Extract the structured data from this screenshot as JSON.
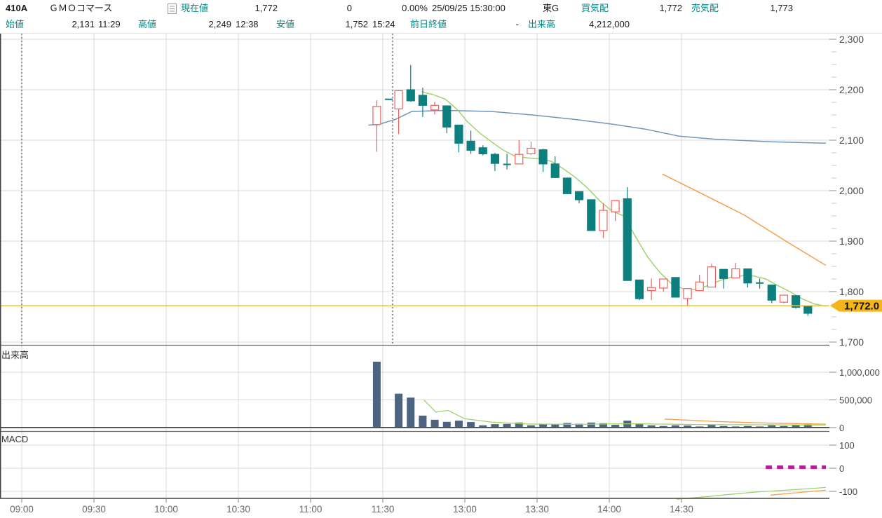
{
  "header": {
    "symbol_code": "410A",
    "symbol_name": "ＧＭＯコマース",
    "current_label": "現在値",
    "current_value": "1,772",
    "change_value": "0",
    "change_pct": "0.00%",
    "datetime": "25/09/25 15:30:00",
    "market": "東G",
    "bid_label": "買気配",
    "bid_value": "1,772",
    "ask_label": "売気配",
    "ask_value": "1,773",
    "open_label": "始値",
    "open_value": "2,131",
    "open_time": "11:29",
    "high_label": "高値",
    "high_value": "2,249",
    "high_time": "12:38",
    "low_label": "安値",
    "low_value": "1,752",
    "low_time": "15:24",
    "prev_close_label": "前日終値",
    "prev_close_value": "-",
    "volume_label": "出来高",
    "volume_value": "4,212,000"
  },
  "colors": {
    "up": "#f0615e",
    "down": "#0d7f7f",
    "ma_short": "#9fd36d",
    "ma_mid": "#7295bb",
    "ma_long": "#f59f4b",
    "volume_bar": "#4d6480",
    "price_line": "#e9c43c",
    "price_badge": "#f5b518",
    "macd_dashed": "#b01da0",
    "grid": "#d9d9d9",
    "axis_dark": "#555555",
    "axis_text": "#4a4a4a",
    "x_text": "#666666"
  },
  "chart_data": {
    "type": "candlestick",
    "interval": "5min",
    "x_axis": {
      "ticks": [
        "09:00",
        "09:30",
        "10:00",
        "10:30",
        "11:00",
        "11:30",
        "13:00",
        "13:30",
        "14:00",
        "14:30"
      ],
      "session_start_lines": [
        "09:00",
        "12:30"
      ]
    },
    "price_axis": {
      "min": 1700,
      "max": 2300,
      "step": 100,
      "minor_step": 25
    },
    "price_line": {
      "value": 1772,
      "label": "1,772.0"
    },
    "pane_labels": {
      "volume": "出来高",
      "macd": "MACD"
    },
    "volume_axis": [
      {
        "v": 1000000,
        "label": "1,000,000"
      },
      {
        "v": 500000,
        "label": "500,000"
      },
      {
        "v": 0,
        "label": "0"
      }
    ],
    "macd_axis": [
      {
        "v": 100,
        "label": "100"
      },
      {
        "v": 0,
        "label": "0"
      },
      {
        "v": -100,
        "label": "-100"
      }
    ],
    "candles": [
      [
        "11:25",
        2131,
        2179,
        2077,
        2167
      ],
      [
        "11:30",
        2181,
        2181,
        2181,
        2181
      ],
      [
        "12:30",
        2162,
        2199,
        2112,
        2198
      ],
      [
        "12:35",
        2200,
        2249,
        2176,
        2178
      ],
      [
        "12:40",
        2189,
        2204,
        2146,
        2169
      ],
      [
        "12:45",
        2160,
        2176,
        2151,
        2169
      ],
      [
        "12:50",
        2168,
        2168,
        2114,
        2126
      ],
      [
        "12:55",
        2130,
        2130,
        2076,
        2094
      ],
      [
        "13:00",
        2098,
        2119,
        2073,
        2080
      ],
      [
        "13:05",
        2085,
        2090,
        2070,
        2073
      ],
      [
        "13:10",
        2072,
        2075,
        2039,
        2054
      ],
      [
        "13:15",
        2052,
        2073,
        2042,
        2052
      ],
      [
        "13:20",
        2053,
        2100,
        2053,
        2072
      ],
      [
        "13:25",
        2073,
        2097,
        2071,
        2084
      ],
      [
        "13:30",
        2081,
        2083,
        2037,
        2053
      ],
      [
        "13:35",
        2053,
        2068,
        2025,
        2026
      ],
      [
        "13:40",
        2025,
        2025,
        1994,
        1994
      ],
      [
        "13:45",
        1998,
        1998,
        1975,
        1982
      ],
      [
        "13:50",
        1982,
        1982,
        1921,
        1921
      ],
      [
        "13:55",
        1921,
        1975,
        1906,
        1961
      ],
      [
        "14:00",
        1958,
        1980,
        1940,
        1980
      ],
      [
        "14:05",
        1984,
        2007,
        1822,
        1822
      ],
      [
        "14:10",
        1823,
        1823,
        1783,
        1786
      ],
      [
        "14:15",
        1802,
        1826,
        1783,
        1808
      ],
      [
        "14:20",
        1807,
        1825,
        1800,
        1825
      ],
      [
        "14:25",
        1828,
        1828,
        1789,
        1789
      ],
      [
        "14:30",
        1786,
        1806,
        1772,
        1806
      ],
      [
        "14:35",
        1802,
        1833,
        1802,
        1819
      ],
      [
        "14:40",
        1809,
        1855,
        1809,
        1849
      ],
      [
        "14:45",
        1844,
        1844,
        1806,
        1826
      ],
      [
        "14:50",
        1827,
        1857,
        1827,
        1845
      ],
      [
        "14:55",
        1845,
        1845,
        1808,
        1817
      ],
      [
        "15:00",
        1817,
        1826,
        1806,
        1817
      ],
      [
        "15:05",
        1813,
        1813,
        1777,
        1783
      ],
      [
        "15:10",
        1779,
        1793,
        1777,
        1793
      ],
      [
        "15:15",
        1792,
        1792,
        1766,
        1769
      ],
      [
        "15:20",
        1771,
        1771,
        1752,
        1757
      ]
    ],
    "volume_bars": [
      [
        "11:25",
        1190000
      ],
      [
        "11:30",
        0
      ],
      [
        "12:30",
        612000
      ],
      [
        "12:35",
        541000
      ],
      [
        "12:40",
        216000
      ],
      [
        "12:45",
        141000
      ],
      [
        "12:50",
        104000
      ],
      [
        "12:55",
        125000
      ],
      [
        "13:00",
        100000
      ],
      [
        "13:05",
        41000
      ],
      [
        "13:10",
        62000
      ],
      [
        "13:15",
        66000
      ],
      [
        "13:20",
        91000
      ],
      [
        "13:25",
        41000
      ],
      [
        "13:30",
        58000
      ],
      [
        "13:35",
        58000
      ],
      [
        "13:40",
        83000
      ],
      [
        "13:45",
        70000
      ],
      [
        "13:50",
        91000
      ],
      [
        "13:55",
        79000
      ],
      [
        "14:00",
        50000
      ],
      [
        "14:05",
        125000
      ],
      [
        "14:10",
        70000
      ],
      [
        "14:15",
        41000
      ],
      [
        "14:20",
        29000
      ],
      [
        "14:25",
        41000
      ],
      [
        "14:30",
        37000
      ],
      [
        "14:35",
        20000
      ],
      [
        "14:40",
        50000
      ],
      [
        "14:45",
        29000
      ],
      [
        "14:50",
        20000
      ],
      [
        "14:55",
        29000
      ],
      [
        "15:00",
        20000
      ],
      [
        "15:05",
        41000
      ],
      [
        "15:10",
        29000
      ],
      [
        "15:15",
        50000
      ],
      [
        "15:20",
        58000
      ]
    ],
    "price_overlays": {
      "ma_short_green": [
        [
          "12:42",
          2196
        ],
        [
          "12:47",
          2190
        ],
        [
          "12:52",
          2181
        ],
        [
          "12:57",
          2160
        ],
        [
          "13:01",
          2137
        ],
        [
          "13:06",
          2115
        ],
        [
          "13:11",
          2097
        ],
        [
          "13:16",
          2080
        ],
        [
          "13:21",
          2068
        ],
        [
          "13:26",
          2065
        ],
        [
          "13:31",
          2063
        ],
        [
          "13:36",
          2058
        ],
        [
          "13:41",
          2043
        ],
        [
          "13:46",
          2026
        ],
        [
          "13:51",
          2005
        ],
        [
          "13:56",
          1980
        ],
        [
          "14:01",
          1960
        ],
        [
          "14:06",
          1950
        ],
        [
          "14:11",
          1908
        ],
        [
          "14:16",
          1868
        ],
        [
          "14:21",
          1838
        ],
        [
          "14:26",
          1815
        ],
        [
          "14:31",
          1805
        ],
        [
          "14:36",
          1804
        ],
        [
          "14:41",
          1812
        ],
        [
          "14:46",
          1822
        ],
        [
          "14:51",
          1829
        ],
        [
          "14:56",
          1832
        ],
        [
          "15:00",
          1831
        ],
        [
          "15:05",
          1825
        ],
        [
          "15:10",
          1812
        ],
        [
          "15:15",
          1800
        ],
        [
          "15:20",
          1786
        ],
        [
          "15:25",
          1776
        ],
        [
          "15:30",
          1771
        ]
      ],
      "ma_mid_blue": [
        [
          "11:24",
          2130
        ],
        [
          "11:28",
          2131
        ],
        [
          "12:31",
          2141
        ],
        [
          "12:38",
          2157
        ],
        [
          "12:52",
          2159
        ],
        [
          "13:11",
          2157
        ],
        [
          "13:28",
          2150
        ],
        [
          "13:46",
          2141
        ],
        [
          "14:01",
          2132
        ],
        [
          "14:15",
          2122
        ],
        [
          "14:29",
          2108
        ],
        [
          "14:44",
          2102
        ],
        [
          "15:07",
          2097
        ],
        [
          "15:30",
          2094
        ]
      ],
      "ma_long_orange": [
        [
          "14:22",
          2033
        ],
        [
          "14:38",
          1995
        ],
        [
          "14:56",
          1952
        ],
        [
          "15:13",
          1901
        ],
        [
          "15:30",
          1852
        ]
      ]
    },
    "volume_overlays": {
      "green": [
        [
          "12:43",
          500000
        ],
        [
          "12:48",
          280000
        ],
        [
          "12:53",
          310000
        ],
        [
          "13:00",
          160000
        ],
        [
          "13:11",
          100000
        ],
        [
          "13:25",
          66000
        ],
        [
          "13:45",
          58000
        ],
        [
          "14:09",
          70000
        ],
        [
          "14:38",
          55000
        ],
        [
          "15:07",
          50000
        ],
        [
          "15:30",
          45000
        ]
      ],
      "orange": [
        [
          "14:23",
          155000
        ],
        [
          "14:44",
          110000
        ],
        [
          "15:07",
          80000
        ],
        [
          "15:30",
          63000
        ]
      ]
    },
    "macd_lines": {
      "green": [
        [
          "14:28",
          -134
        ],
        [
          "14:38",
          -125
        ],
        [
          "14:50",
          -113
        ],
        [
          "15:01",
          -103
        ],
        [
          "15:13",
          -95
        ],
        [
          "15:22",
          -89
        ],
        [
          "15:30",
          -83
        ]
      ],
      "orange": [
        [
          "15:07",
          -116
        ],
        [
          "15:19",
          -105
        ],
        [
          "15:30",
          -95
        ]
      ],
      "dashed_magenta": {
        "from": "15:05",
        "to": "15:30",
        "value": 4
      }
    }
  }
}
